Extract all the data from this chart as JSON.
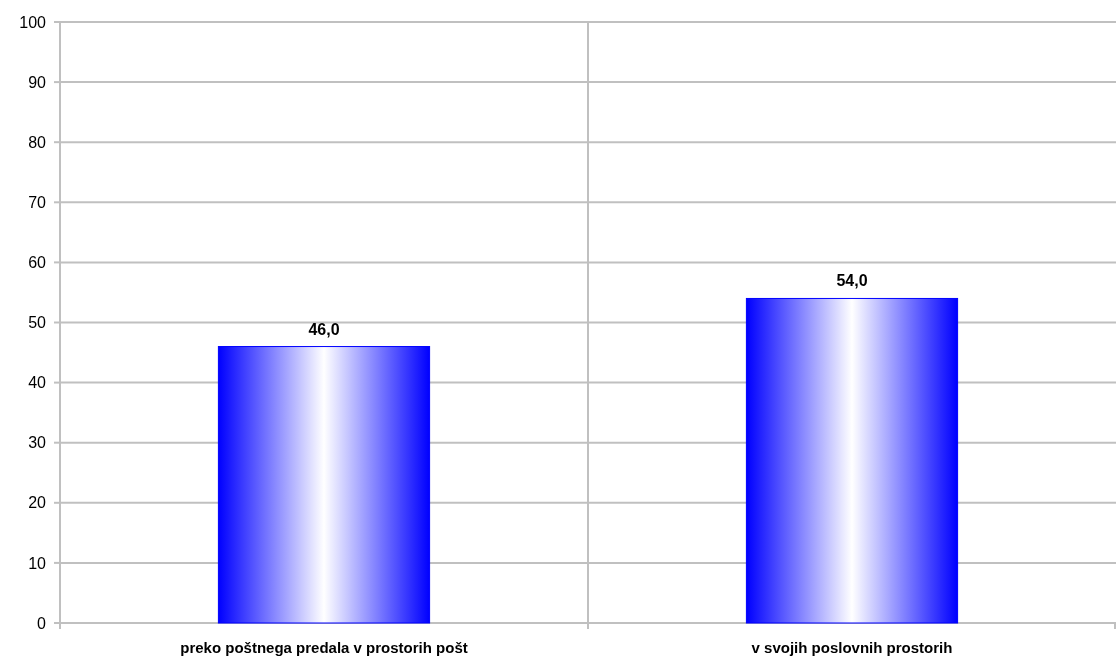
{
  "chart_data": {
    "type": "bar",
    "categories": [
      "preko poštnega predala v prostorih pošt",
      "v svojih poslovnih prostorih"
    ],
    "values": [
      46.0,
      54.0
    ],
    "color": "#0000ff",
    "value_labels": [
      "46,0",
      "54,0"
    ],
    "ylim": [
      0,
      100
    ],
    "yticks": [
      0,
      10,
      20,
      30,
      40,
      50,
      60,
      70,
      80,
      90,
      100
    ],
    "grid": true
  }
}
